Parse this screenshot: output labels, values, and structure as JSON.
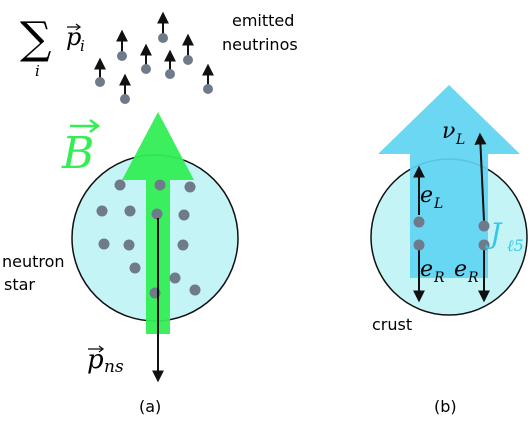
{
  "labels": {
    "sum_sigma": "∑",
    "sum_index": "i",
    "sum_vec_p": "p",
    "sum_sub": "i",
    "emitted_line1": "emitted",
    "emitted_line2": "neutrinos",
    "B_field": "B",
    "neutron_line1": "neutron",
    "neutron_line2": "star",
    "p_ns": "p",
    "p_ns_sub": "ns",
    "panel_a": "(a)",
    "panel_b": "(b)",
    "nu_L": "ν",
    "nu_L_sub": "L",
    "e_L": "e",
    "e_L_sub": "L",
    "e_R_left": "e",
    "e_R_left_sub": "R",
    "e_R_right": "e",
    "e_R_right_sub": "R",
    "J": "J",
    "J_sub": "ℓ5",
    "crust": "crust"
  },
  "colors": {
    "star_fill": "#c4f4f6",
    "star_stroke": "#111111",
    "b_arrow": "#33ee55",
    "current_arrow": "#5fd4f2",
    "particle": "#6f7a8a",
    "j_label": "#33c8e8"
  }
}
